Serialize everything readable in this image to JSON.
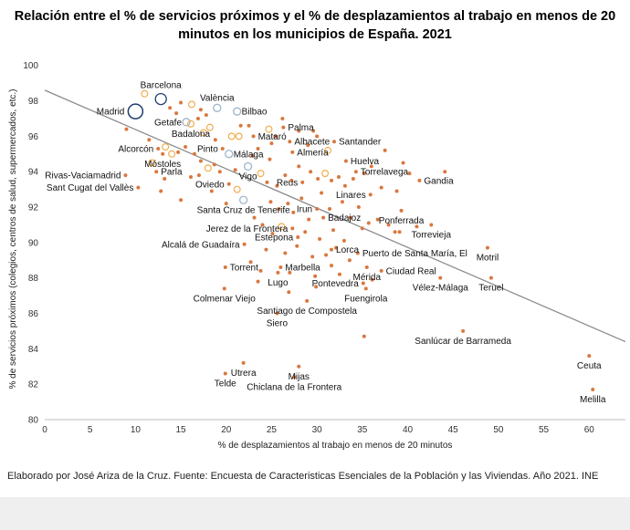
{
  "chart_data": {
    "type": "scatter",
    "title": "Relación entre el % de servicios próximos y el % de desplazamientos al trabajo en menos de 20 minutos en los municipios de España. 2021",
    "xlabel": "% de desplazamientos al trabajo en menos de 20 minutos",
    "ylabel": "% de servicios próximos (colegios, centros de salud, supermercados, etc.)",
    "xlim": [
      0,
      64
    ],
    "ylim": [
      80,
      100.5
    ],
    "xticks": [
      0,
      5,
      10,
      15,
      20,
      25,
      30,
      35,
      40,
      45,
      50,
      55,
      60
    ],
    "yticks": [
      80,
      82,
      84,
      86,
      88,
      90,
      92,
      94,
      96,
      98,
      100
    ],
    "grid": false,
    "legend": "none",
    "trendline": {
      "x": [
        0,
        64
      ],
      "y": [
        98.6,
        84.4
      ]
    },
    "colors": {
      "small": "#d9783f",
      "medium": "#f0ad4e",
      "large_outline": "#1f3c6e",
      "mid_outline": "#9cb4cc",
      "trendline": "#8c8c8c"
    },
    "labeled_points": [
      {
        "name": "Madrid",
        "x": 10.0,
        "y": 97.4,
        "size": "xl",
        "label_side": "left"
      },
      {
        "name": "Barcelona",
        "x": 12.8,
        "y": 98.1,
        "size": "l",
        "label_side": "above"
      },
      {
        "name": "València",
        "x": 19.0,
        "y": 97.6,
        "size": "m",
        "label_side": "above"
      },
      {
        "name": "Bilbao",
        "x": 21.2,
        "y": 97.4,
        "size": "m",
        "label_side": "right"
      },
      {
        "name": "Getafe",
        "x": 15.6,
        "y": 96.8,
        "size": "m",
        "label_side": "left"
      },
      {
        "name": "Badalona",
        "x": 16.1,
        "y": 96.7,
        "size": "m",
        "label_side": "below"
      },
      {
        "name": "Palma",
        "x": 26.3,
        "y": 96.5,
        "size": "s",
        "label_side": "right"
      },
      {
        "name": "Mataró",
        "x": 23.0,
        "y": 96.0,
        "size": "s",
        "label_side": "right"
      },
      {
        "name": "Albacete",
        "x": 27.0,
        "y": 95.7,
        "size": "s",
        "label_side": "right"
      },
      {
        "name": "Santander",
        "x": 31.9,
        "y": 95.7,
        "size": "s",
        "label_side": "right"
      },
      {
        "name": "Alcorcón",
        "x": 12.5,
        "y": 95.3,
        "size": "s",
        "label_side": "left"
      },
      {
        "name": "Pinto",
        "x": 19.6,
        "y": 95.3,
        "size": "s",
        "label_side": "left"
      },
      {
        "name": "Almería",
        "x": 27.3,
        "y": 95.1,
        "size": "s",
        "label_side": "right"
      },
      {
        "name": "Málaga",
        "x": 20.3,
        "y": 95.0,
        "size": "m",
        "label_side": "right"
      },
      {
        "name": "Móstoles",
        "x": 13.0,
        "y": 95.0,
        "size": "s",
        "label_side": "below"
      },
      {
        "name": "Huelva",
        "x": 33.2,
        "y": 94.6,
        "size": "s",
        "label_side": "right"
      },
      {
        "name": "Parla",
        "x": 12.3,
        "y": 94.0,
        "size": "s",
        "label_side": "right"
      },
      {
        "name": "Torrelavega",
        "x": 34.3,
        "y": 94.0,
        "size": "s",
        "label_side": "right"
      },
      {
        "name": "Rivas-Vaciamadrid",
        "x": 8.9,
        "y": 93.8,
        "size": "s",
        "label_side": "left"
      },
      {
        "name": "Gandia",
        "x": 41.3,
        "y": 93.5,
        "size": "s",
        "label_side": "right"
      },
      {
        "name": "Vigo",
        "x": 22.4,
        "y": 94.3,
        "size": "m",
        "label_side": "below"
      },
      {
        "name": "Oviedo",
        "x": 20.3,
        "y": 93.3,
        "size": "s",
        "label_side": "left"
      },
      {
        "name": "Reus",
        "x": 28.4,
        "y": 93.4,
        "size": "s",
        "label_side": "left"
      },
      {
        "name": "Linares",
        "x": 35.9,
        "y": 92.7,
        "size": "s",
        "label_side": "left"
      },
      {
        "name": "Sant Cugat del Vallès",
        "x": 10.3,
        "y": 93.1,
        "size": "s",
        "label_side": "left"
      },
      {
        "name": "Santa Cruz de Tenerife",
        "x": 21.9,
        "y": 92.4,
        "size": "m",
        "label_side": "below"
      },
      {
        "name": "Irun",
        "x": 30.0,
        "y": 91.9,
        "size": "s",
        "label_side": "left"
      },
      {
        "name": "Badajoz",
        "x": 30.7,
        "y": 91.4,
        "size": "s",
        "label_side": "right"
      },
      {
        "name": "Ponferrada",
        "x": 39.3,
        "y": 91.8,
        "size": "s",
        "label_side": "below"
      },
      {
        "name": "Jerez de la Frontera",
        "x": 27.3,
        "y": 90.8,
        "size": "s",
        "label_side": "left"
      },
      {
        "name": "Torrevieja",
        "x": 42.6,
        "y": 91.0,
        "size": "s",
        "label_side": "below"
      },
      {
        "name": "Estepona",
        "x": 27.9,
        "y": 90.3,
        "size": "s",
        "label_side": "left"
      },
      {
        "name": "Alcalá de Guadaíra",
        "x": 22.0,
        "y": 89.9,
        "size": "s",
        "label_side": "left"
      },
      {
        "name": "Lorca",
        "x": 31.6,
        "y": 89.6,
        "size": "s",
        "label_side": "right"
      },
      {
        "name": "Puerto de Santa María, El",
        "x": 34.5,
        "y": 89.4,
        "size": "s",
        "label_side": "right"
      },
      {
        "name": "Motril",
        "x": 48.8,
        "y": 89.7,
        "size": "s",
        "label_side": "below"
      },
      {
        "name": "Marbella",
        "x": 26.0,
        "y": 88.6,
        "size": "s",
        "label_side": "right"
      },
      {
        "name": "Torrent",
        "x": 19.9,
        "y": 88.6,
        "size": "s",
        "label_side": "right"
      },
      {
        "name": "Ciudad Real",
        "x": 37.1,
        "y": 88.4,
        "size": "s",
        "label_side": "right"
      },
      {
        "name": "Mérida",
        "x": 35.5,
        "y": 88.6,
        "size": "s",
        "label_side": "below"
      },
      {
        "name": "Lugo",
        "x": 25.7,
        "y": 88.3,
        "size": "s",
        "label_side": "below"
      },
      {
        "name": "Pontevedra",
        "x": 35.1,
        "y": 87.7,
        "size": "s",
        "label_side": "left"
      },
      {
        "name": "Vélez-Málaga",
        "x": 43.6,
        "y": 88.0,
        "size": "s",
        "label_side": "below"
      },
      {
        "name": "Teruel",
        "x": 49.2,
        "y": 88.0,
        "size": "s",
        "label_side": "below"
      },
      {
        "name": "Fuengirola",
        "x": 35.4,
        "y": 87.4,
        "size": "s",
        "label_side": "below"
      },
      {
        "name": "Colmenar Viejo",
        "x": 19.8,
        "y": 87.4,
        "size": "s",
        "label_side": "below"
      },
      {
        "name": "Santiago de Compostela",
        "x": 28.9,
        "y": 86.7,
        "size": "s",
        "label_side": "below"
      },
      {
        "name": "Siero",
        "x": 25.6,
        "y": 86.0,
        "size": "s",
        "label_side": "below"
      },
      {
        "name": "Sanlúcar de Barrameda",
        "x": 46.1,
        "y": 85.0,
        "size": "s",
        "label_side": "below"
      },
      {
        "name": "Ceuta",
        "x": 60.0,
        "y": 83.6,
        "size": "s",
        "label_side": "below"
      },
      {
        "name": "Utrera",
        "x": 21.9,
        "y": 83.2,
        "size": "s",
        "label_side": "below"
      },
      {
        "name": "Mijas",
        "x": 28.0,
        "y": 83.0,
        "size": "s",
        "label_side": "below"
      },
      {
        "name": "Telde",
        "x": 19.9,
        "y": 82.6,
        "size": "s",
        "label_side": "below"
      },
      {
        "name": "Chiclana de la Frontera",
        "x": 27.5,
        "y": 82.4,
        "size": "s",
        "label_side": "below"
      },
      {
        "name": "Melilla",
        "x": 60.4,
        "y": 81.7,
        "size": "s",
        "label_side": "below"
      }
    ],
    "other_points": [
      {
        "x": 11.0,
        "y": 98.4,
        "size": "m"
      },
      {
        "x": 13.8,
        "y": 97.6,
        "size": "s"
      },
      {
        "x": 14.5,
        "y": 97.3,
        "size": "s"
      },
      {
        "x": 15.0,
        "y": 97.9,
        "size": "s"
      },
      {
        "x": 16.2,
        "y": 97.8,
        "size": "m"
      },
      {
        "x": 17.2,
        "y": 97.5,
        "size": "s"
      },
      {
        "x": 17.8,
        "y": 97.2,
        "size": "s"
      },
      {
        "x": 18.2,
        "y": 96.5,
        "size": "m"
      },
      {
        "x": 16.9,
        "y": 97.0,
        "size": "s"
      },
      {
        "x": 17.5,
        "y": 96.2,
        "size": "m"
      },
      {
        "x": 18.8,
        "y": 95.8,
        "size": "s"
      },
      {
        "x": 21.6,
        "y": 96.6,
        "size": "s"
      },
      {
        "x": 20.6,
        "y": 96.0,
        "size": "m"
      },
      {
        "x": 21.4,
        "y": 96.0,
        "size": "m"
      },
      {
        "x": 22.5,
        "y": 96.6,
        "size": "s"
      },
      {
        "x": 24.7,
        "y": 96.4,
        "size": "m"
      },
      {
        "x": 25.4,
        "y": 96.0,
        "size": "s"
      },
      {
        "x": 26.2,
        "y": 97.0,
        "size": "s"
      },
      {
        "x": 28.0,
        "y": 96.3,
        "size": "s"
      },
      {
        "x": 29.6,
        "y": 96.3,
        "size": "s"
      },
      {
        "x": 30.0,
        "y": 96.0,
        "size": "s"
      },
      {
        "x": 29.0,
        "y": 95.5,
        "size": "s"
      },
      {
        "x": 31.2,
        "y": 95.2,
        "size": "m"
      },
      {
        "x": 25.0,
        "y": 95.6,
        "size": "s"
      },
      {
        "x": 23.5,
        "y": 95.3,
        "size": "s"
      },
      {
        "x": 24.8,
        "y": 94.7,
        "size": "s"
      },
      {
        "x": 22.9,
        "y": 94.9,
        "size": "s"
      },
      {
        "x": 11.5,
        "y": 95.8,
        "size": "s"
      },
      {
        "x": 11.8,
        "y": 94.5,
        "size": "m"
      },
      {
        "x": 14.0,
        "y": 95.0,
        "size": "m"
      },
      {
        "x": 13.3,
        "y": 95.4,
        "size": "m"
      },
      {
        "x": 14.7,
        "y": 95.1,
        "size": "s"
      },
      {
        "x": 15.5,
        "y": 95.4,
        "size": "s"
      },
      {
        "x": 16.5,
        "y": 95.0,
        "size": "s"
      },
      {
        "x": 17.2,
        "y": 94.6,
        "size": "s"
      },
      {
        "x": 18.0,
        "y": 94.2,
        "size": "m"
      },
      {
        "x": 18.7,
        "y": 94.4,
        "size": "s"
      },
      {
        "x": 19.3,
        "y": 94.0,
        "size": "s"
      },
      {
        "x": 16.1,
        "y": 93.7,
        "size": "s"
      },
      {
        "x": 17.0,
        "y": 93.8,
        "size": "s"
      },
      {
        "x": 13.2,
        "y": 93.6,
        "size": "s"
      },
      {
        "x": 12.8,
        "y": 92.9,
        "size": "s"
      },
      {
        "x": 15.0,
        "y": 92.4,
        "size": "s"
      },
      {
        "x": 9.0,
        "y": 96.4,
        "size": "s"
      },
      {
        "x": 21.0,
        "y": 94.1,
        "size": "s"
      },
      {
        "x": 23.8,
        "y": 93.9,
        "size": "m"
      },
      {
        "x": 24.5,
        "y": 93.4,
        "size": "s"
      },
      {
        "x": 25.6,
        "y": 93.2,
        "size": "s"
      },
      {
        "x": 26.5,
        "y": 93.8,
        "size": "s"
      },
      {
        "x": 27.2,
        "y": 93.5,
        "size": "s"
      },
      {
        "x": 28.0,
        "y": 94.3,
        "size": "s"
      },
      {
        "x": 29.3,
        "y": 94.0,
        "size": "s"
      },
      {
        "x": 30.1,
        "y": 93.6,
        "size": "s"
      },
      {
        "x": 30.9,
        "y": 93.9,
        "size": "m"
      },
      {
        "x": 31.6,
        "y": 93.5,
        "size": "s"
      },
      {
        "x": 32.4,
        "y": 93.7,
        "size": "s"
      },
      {
        "x": 33.1,
        "y": 93.2,
        "size": "s"
      },
      {
        "x": 34.0,
        "y": 93.6,
        "size": "s"
      },
      {
        "x": 35.2,
        "y": 93.9,
        "size": "s"
      },
      {
        "x": 36.0,
        "y": 94.3,
        "size": "s"
      },
      {
        "x": 37.5,
        "y": 95.2,
        "size": "s"
      },
      {
        "x": 39.5,
        "y": 94.5,
        "size": "s"
      },
      {
        "x": 40.2,
        "y": 93.9,
        "size": "s"
      },
      {
        "x": 44.1,
        "y": 94.0,
        "size": "s"
      },
      {
        "x": 37.1,
        "y": 93.1,
        "size": "s"
      },
      {
        "x": 38.8,
        "y": 92.9,
        "size": "s"
      },
      {
        "x": 24.9,
        "y": 92.3,
        "size": "s"
      },
      {
        "x": 25.8,
        "y": 91.9,
        "size": "s"
      },
      {
        "x": 26.8,
        "y": 92.2,
        "size": "s"
      },
      {
        "x": 27.4,
        "y": 91.7,
        "size": "s"
      },
      {
        "x": 28.3,
        "y": 92.5,
        "size": "s"
      },
      {
        "x": 29.1,
        "y": 91.3,
        "size": "s"
      },
      {
        "x": 30.5,
        "y": 92.8,
        "size": "s"
      },
      {
        "x": 31.4,
        "y": 91.9,
        "size": "s"
      },
      {
        "x": 32.8,
        "y": 92.3,
        "size": "s"
      },
      {
        "x": 33.7,
        "y": 91.4,
        "size": "s"
      },
      {
        "x": 34.6,
        "y": 92.0,
        "size": "s"
      },
      {
        "x": 35.7,
        "y": 91.1,
        "size": "s"
      },
      {
        "x": 36.7,
        "y": 91.3,
        "size": "s"
      },
      {
        "x": 37.9,
        "y": 91.0,
        "size": "s"
      },
      {
        "x": 35.0,
        "y": 90.8,
        "size": "s"
      },
      {
        "x": 38.6,
        "y": 90.6,
        "size": "s"
      },
      {
        "x": 39.1,
        "y": 90.6,
        "size": "s"
      },
      {
        "x": 41.0,
        "y": 90.9,
        "size": "s"
      },
      {
        "x": 23.1,
        "y": 91.4,
        "size": "s"
      },
      {
        "x": 24.0,
        "y": 91.0,
        "size": "s"
      },
      {
        "x": 25.1,
        "y": 90.5,
        "size": "s"
      },
      {
        "x": 26.1,
        "y": 90.9,
        "size": "m"
      },
      {
        "x": 28.7,
        "y": 90.6,
        "size": "s"
      },
      {
        "x": 30.3,
        "y": 90.2,
        "size": "s"
      },
      {
        "x": 31.8,
        "y": 90.7,
        "size": "s"
      },
      {
        "x": 33.0,
        "y": 90.1,
        "size": "s"
      },
      {
        "x": 24.4,
        "y": 89.6,
        "size": "s"
      },
      {
        "x": 26.5,
        "y": 89.4,
        "size": "s"
      },
      {
        "x": 27.8,
        "y": 89.8,
        "size": "s"
      },
      {
        "x": 29.5,
        "y": 89.2,
        "size": "s"
      },
      {
        "x": 31.0,
        "y": 89.3,
        "size": "s"
      },
      {
        "x": 32.1,
        "y": 89.7,
        "size": "s"
      },
      {
        "x": 33.6,
        "y": 89.0,
        "size": "s"
      },
      {
        "x": 22.7,
        "y": 88.9,
        "size": "s"
      },
      {
        "x": 23.8,
        "y": 88.4,
        "size": "s"
      },
      {
        "x": 27.0,
        "y": 88.3,
        "size": "s"
      },
      {
        "x": 29.8,
        "y": 88.1,
        "size": "s"
      },
      {
        "x": 31.6,
        "y": 88.7,
        "size": "s"
      },
      {
        "x": 32.5,
        "y": 88.2,
        "size": "s"
      },
      {
        "x": 36.1,
        "y": 87.9,
        "size": "s"
      },
      {
        "x": 23.5,
        "y": 87.8,
        "size": "s"
      },
      {
        "x": 29.9,
        "y": 87.5,
        "size": "s"
      },
      {
        "x": 26.9,
        "y": 87.2,
        "size": "s"
      },
      {
        "x": 35.2,
        "y": 84.7,
        "size": "s"
      },
      {
        "x": 21.2,
        "y": 93.0,
        "size": "m"
      },
      {
        "x": 20.0,
        "y": 92.2,
        "size": "s"
      },
      {
        "x": 18.4,
        "y": 92.9,
        "size": "s"
      }
    ]
  },
  "source_note": "Elaborado por José Ariza de la Cruz. Fuente: Encuesta de Caracteristicas Esenciales de la Población y las Viviendas. Año 2021. INE"
}
